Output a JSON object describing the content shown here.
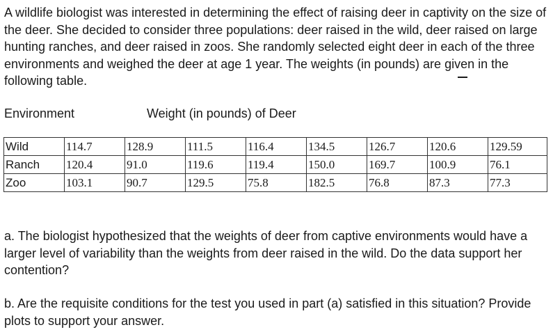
{
  "intro": "A wildlife biologist was interested in determining the effect of raising deer in captivity on the size of the deer. She decided to consider three populations: deer raised in the wild, deer raised on large hunting ranches, and deer raised in zoos. She randomly selected eight deer in each of the three environments and weighed the deer at age 1 year. The weights (in pounds) are given in the following table.",
  "table": {
    "header_environment": "Environment",
    "header_weight": "Weight (in pounds) of Deer",
    "rows": [
      {
        "label": "Wild",
        "values": [
          "114.7",
          "128.9",
          "111.5",
          "116.4",
          "134.5",
          "126.7",
          "120.6",
          "129.59"
        ]
      },
      {
        "label": "Ranch",
        "values": [
          "120.4",
          "91.0",
          "119.6",
          "119.4",
          "150.0",
          "169.7",
          "100.9",
          "76.1"
        ]
      },
      {
        "label": "Zoo",
        "values": [
          "103.1",
          "90.7",
          "129.5",
          "75.8",
          "182.5",
          "76.8",
          "87.3",
          "77.3"
        ]
      }
    ]
  },
  "part_a": "a. The biologist hypothesized that the weights of deer from captive environments would have a larger level of variability than the weights from deer raised in the wild. Do the data support her contention?",
  "part_b": "b. Are the requisite conditions for the test you used in part (a) satisfied in this situation? Provide plots to support your answer."
}
